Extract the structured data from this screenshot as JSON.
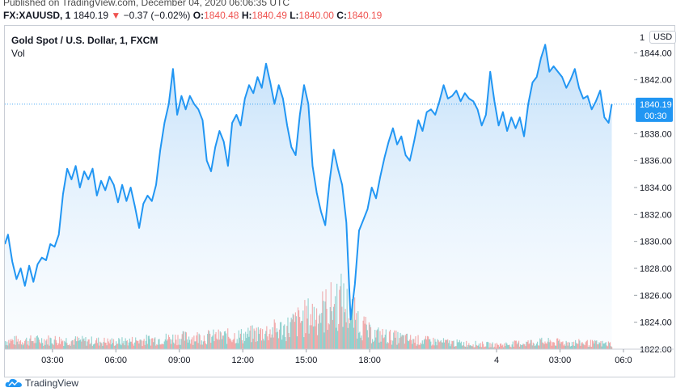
{
  "header": {
    "published": "Published on TradingView.com, December 04, 2020 06:06:35 UTC",
    "symbol": "FX:XAUUSD, 1",
    "last": "1840.19",
    "change_arrow": "▼",
    "change": "−0.37 (−0.02%)",
    "o_label": "O:",
    "o_value": "1840.48",
    "h_label": "H:",
    "h_value": "1840.49",
    "l_label": "L:",
    "l_value": "1840.00",
    "c_label": "C:",
    "c_value": "1840.19"
  },
  "chart": {
    "title": "Gold Spot / U.S. Dollar, 1, FXCM",
    "vol_label": "Vol",
    "currency": "USD",
    "currency_prefix": "1"
  },
  "footer": {
    "brand": "TradingView"
  },
  "colors": {
    "line": "#2196f3",
    "fill_top": "#90c6f5",
    "vol_up": "#26a69a",
    "vol_down": "#ef5350",
    "last_price_tag": "#2196f3"
  },
  "chart_data": {
    "type": "area",
    "ylim": [
      1822,
      1846
    ],
    "y_ticks": [
      1844.0,
      1842.0,
      1838.0,
      1836.0,
      1834.0,
      1832.0,
      1830.0,
      1828.0,
      1826.0,
      1824.0,
      1822.0
    ],
    "y_tick_labels": [
      "1844.00",
      "1842.00",
      "1838.00",
      "1836.00",
      "1834.00",
      "1832.00",
      "1830.00",
      "1828.00",
      "1826.00",
      "1824.00",
      "1822.00"
    ],
    "x_ticks": [
      2,
      4,
      6,
      8,
      10,
      12,
      14,
      16,
      18,
      20,
      22
    ],
    "x_tick_labels": [
      "03:00",
      "06:00",
      "09:00",
      "12:00",
      "15:00",
      "18:00",
      "4",
      "03:00",
      "06:0"
    ],
    "x_tick_hours": [
      3,
      6,
      9,
      12,
      15,
      18,
      24,
      27,
      30
    ],
    "xlim": [
      0.75,
      30.5
    ],
    "last_price": 1840.19,
    "last_price_label": "1840.19",
    "countdown": "00:30",
    "points": [
      [
        0.75,
        1829.8
      ],
      [
        0.9,
        1830.5
      ],
      [
        1.1,
        1828.5
      ],
      [
        1.3,
        1827.2
      ],
      [
        1.5,
        1828.0
      ],
      [
        1.7,
        1826.7
      ],
      [
        1.9,
        1828.2
      ],
      [
        2.1,
        1827.0
      ],
      [
        2.3,
        1828.3
      ],
      [
        2.5,
        1828.8
      ],
      [
        2.7,
        1828.6
      ],
      [
        2.9,
        1829.8
      ],
      [
        3.1,
        1829.6
      ],
      [
        3.3,
        1830.5
      ],
      [
        3.5,
        1833.5
      ],
      [
        3.7,
        1835.4
      ],
      [
        3.9,
        1834.6
      ],
      [
        4.1,
        1835.6
      ],
      [
        4.3,
        1834.0
      ],
      [
        4.5,
        1835.2
      ],
      [
        4.7,
        1834.6
      ],
      [
        4.9,
        1835.4
      ],
      [
        5.1,
        1833.4
      ],
      [
        5.3,
        1834.5
      ],
      [
        5.5,
        1833.8
      ],
      [
        5.7,
        1834.8
      ],
      [
        5.9,
        1834.2
      ],
      [
        6.1,
        1832.9
      ],
      [
        6.3,
        1834.2
      ],
      [
        6.5,
        1833.0
      ],
      [
        6.7,
        1834.0
      ],
      [
        6.9,
        1832.6
      ],
      [
        7.1,
        1831.0
      ],
      [
        7.3,
        1832.8
      ],
      [
        7.5,
        1833.4
      ],
      [
        7.7,
        1833.0
      ],
      [
        7.9,
        1834.2
      ],
      [
        8.1,
        1836.8
      ],
      [
        8.3,
        1838.8
      ],
      [
        8.5,
        1840.2
      ],
      [
        8.7,
        1842.8
      ],
      [
        8.9,
        1839.4
      ],
      [
        9.1,
        1840.8
      ],
      [
        9.3,
        1839.8
      ],
      [
        9.5,
        1840.8
      ],
      [
        9.7,
        1840.2
      ],
      [
        9.9,
        1839.8
      ],
      [
        10.1,
        1839.0
      ],
      [
        10.3,
        1836.0
      ],
      [
        10.5,
        1835.2
      ],
      [
        10.7,
        1837.0
      ],
      [
        10.9,
        1838.2
      ],
      [
        11.1,
        1837.4
      ],
      [
        11.3,
        1835.6
      ],
      [
        11.5,
        1838.8
      ],
      [
        11.7,
        1839.4
      ],
      [
        11.9,
        1838.6
      ],
      [
        12.1,
        1840.6
      ],
      [
        12.3,
        1841.6
      ],
      [
        12.5,
        1841.0
      ],
      [
        12.7,
        1842.2
      ],
      [
        12.9,
        1841.4
      ],
      [
        13.1,
        1843.2
      ],
      [
        13.3,
        1841.8
      ],
      [
        13.5,
        1840.2
      ],
      [
        13.7,
        1841.6
      ],
      [
        13.9,
        1840.6
      ],
      [
        14.1,
        1838.6
      ],
      [
        14.3,
        1837.0
      ],
      [
        14.5,
        1836.4
      ],
      [
        14.7,
        1839.4
      ],
      [
        14.9,
        1841.6
      ],
      [
        15.1,
        1840.2
      ],
      [
        15.3,
        1835.6
      ],
      [
        15.5,
        1833.6
      ],
      [
        15.7,
        1832.2
      ],
      [
        15.9,
        1831.2
      ],
      [
        16.1,
        1834.4
      ],
      [
        16.3,
        1836.8
      ],
      [
        16.5,
        1835.4
      ],
      [
        16.7,
        1834.2
      ],
      [
        16.9,
        1831.4
      ],
      [
        17.1,
        1824.2
      ],
      [
        17.3,
        1826.8
      ],
      [
        17.5,
        1830.8
      ],
      [
        17.7,
        1831.6
      ],
      [
        17.9,
        1832.4
      ],
      [
        18.1,
        1834.0
      ],
      [
        18.3,
        1833.2
      ],
      [
        18.5,
        1834.8
      ],
      [
        18.7,
        1836.2
      ],
      [
        18.9,
        1837.4
      ],
      [
        19.1,
        1838.4
      ],
      [
        19.3,
        1837.2
      ],
      [
        19.5,
        1837.8
      ],
      [
        19.7,
        1836.4
      ],
      [
        19.9,
        1836.0
      ],
      [
        20.1,
        1837.4
      ],
      [
        20.3,
        1839.0
      ],
      [
        20.5,
        1838.2
      ],
      [
        20.7,
        1839.6
      ],
      [
        20.9,
        1839.8
      ],
      [
        21.1,
        1839.4
      ],
      [
        21.3,
        1840.4
      ],
      [
        21.5,
        1841.6
      ],
      [
        21.7,
        1840.6
      ],
      [
        21.9,
        1840.8
      ],
      [
        22.1,
        1841.2
      ],
      [
        22.3,
        1840.4
      ],
      [
        22.5,
        1841.0
      ],
      [
        22.7,
        1840.6
      ],
      [
        22.9,
        1840.4
      ],
      [
        23.1,
        1839.8
      ],
      [
        23.3,
        1838.6
      ],
      [
        23.5,
        1839.4
      ],
      [
        23.7,
        1842.6
      ],
      [
        23.9,
        1840.4
      ],
      [
        24.1,
        1838.6
      ],
      [
        24.3,
        1839.6
      ],
      [
        24.5,
        1838.2
      ],
      [
        24.7,
        1839.2
      ],
      [
        24.9,
        1838.4
      ],
      [
        25.1,
        1839.2
      ],
      [
        25.3,
        1837.8
      ],
      [
        25.5,
        1840.2
      ],
      [
        25.7,
        1841.8
      ],
      [
        25.9,
        1842.2
      ],
      [
        26.1,
        1843.6
      ],
      [
        26.3,
        1844.6
      ],
      [
        26.5,
        1842.6
      ],
      [
        26.7,
        1843.0
      ],
      [
        26.9,
        1842.6
      ],
      [
        27.1,
        1842.2
      ],
      [
        27.3,
        1841.4
      ],
      [
        27.5,
        1842.0
      ],
      [
        27.7,
        1842.8
      ],
      [
        27.9,
        1841.4
      ],
      [
        28.1,
        1840.6
      ],
      [
        28.3,
        1840.8
      ],
      [
        28.5,
        1839.8
      ],
      [
        28.7,
        1840.4
      ],
      [
        28.9,
        1841.2
      ],
      [
        29.1,
        1839.2
      ],
      [
        29.3,
        1838.8
      ],
      [
        29.45,
        1840.19
      ]
    ],
    "volume": {
      "scale_max": 100,
      "profile": [
        [
          0.75,
          16
        ],
        [
          3.0,
          18
        ],
        [
          6.0,
          14
        ],
        [
          9.0,
          22
        ],
        [
          12.0,
          26
        ],
        [
          14.0,
          40
        ],
        [
          15.0,
          62
        ],
        [
          16.0,
          78
        ],
        [
          16.6,
          95
        ],
        [
          17.1,
          70
        ],
        [
          18.0,
          30
        ],
        [
          20.0,
          18
        ],
        [
          22.0,
          12
        ],
        [
          24.0,
          8
        ],
        [
          26.0,
          14
        ],
        [
          28.0,
          12
        ],
        [
          29.45,
          10
        ]
      ]
    }
  }
}
